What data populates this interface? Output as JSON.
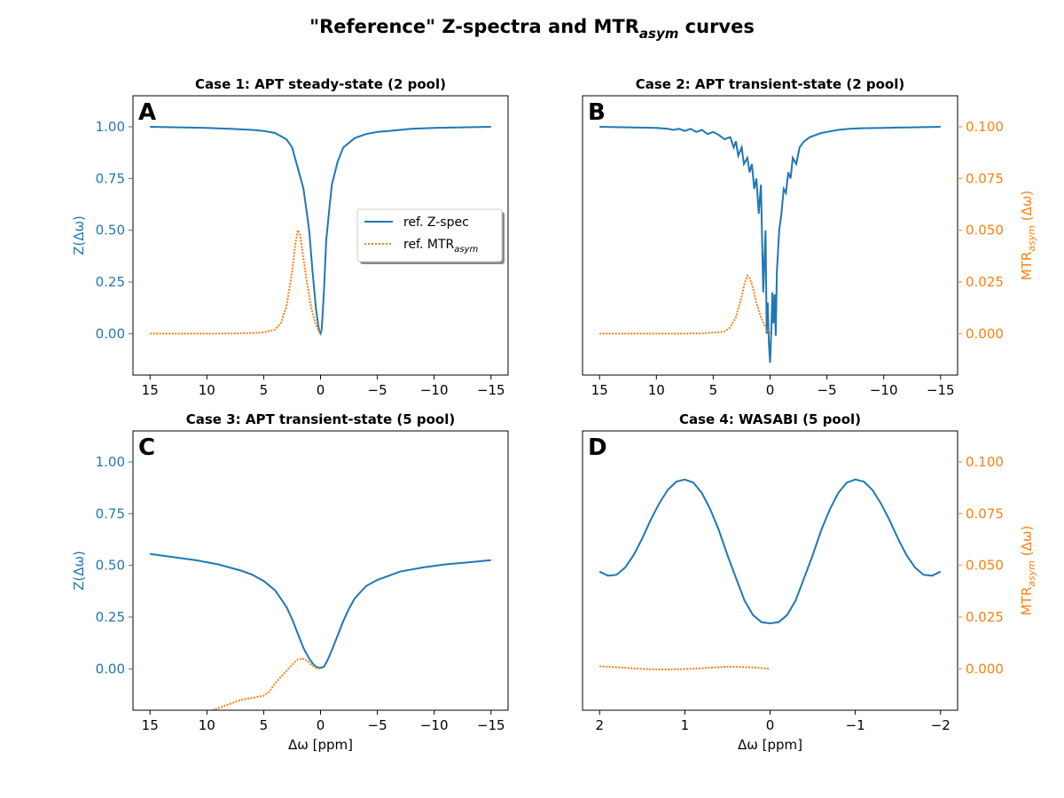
{
  "figure": {
    "title_prefix": "\"Reference\" Z-spectra and MTR",
    "title_sub": "asym",
    "title_suffix": " curves"
  },
  "legend": {
    "zspec_label": "ref. Z-spec",
    "mtr_label_prefix": "ref. MTR",
    "mtr_label_sub": "asym"
  },
  "axes_labels": {
    "z_ylabel": "Z(Δω)",
    "mtr_ylabel_prefix": "MTR",
    "mtr_ylabel_sub": "asym",
    "mtr_ylabel_suffix": " (Δω)",
    "xlabel": "Δω [ppm]"
  },
  "colors": {
    "zspec": "#1f77b4",
    "mtr": "#ff7f0e",
    "axis": "#000000"
  },
  "chart_data": [
    {
      "panel": "A",
      "type": "line",
      "title": "Case 1: APT steady-state (2 pool)",
      "xlim": [
        16.5,
        -16.5
      ],
      "x_ticks": [
        15,
        10,
        5,
        0,
        -5,
        -10,
        -15
      ],
      "x_tick_labels": [
        "15",
        "10",
        "5",
        "0",
        "−5",
        "−10",
        "−15"
      ],
      "ylim_left": [
        -0.2,
        1.15
      ],
      "y_ticks_left": [
        0.0,
        0.25,
        0.5,
        0.75,
        1.0
      ],
      "y_tick_labels_left": [
        "0.00",
        "0.25",
        "0.50",
        "0.75",
        "1.00"
      ],
      "show_left_axis": true,
      "show_right_axis": false,
      "xlabel_shown": false,
      "legend": "center-right",
      "series": [
        {
          "name": "ref. Z-spec",
          "style": "solid",
          "axis": "left",
          "x": [
            15,
            12,
            10,
            8,
            6,
            5,
            4,
            3,
            2.5,
            2,
            1.5,
            1,
            0.7,
            0.4,
            0.2,
            0.1,
            0,
            -0.1,
            -0.3,
            -0.5,
            -0.8,
            -1,
            -1.5,
            -2,
            -3,
            -4,
            -5,
            -6,
            -8,
            -10,
            -12,
            -15
          ],
          "y": [
            1.0,
            0.997,
            0.995,
            0.99,
            0.985,
            0.98,
            0.97,
            0.94,
            0.9,
            0.8,
            0.7,
            0.5,
            0.3,
            0.12,
            0.04,
            0.01,
            0.0,
            0.02,
            0.2,
            0.45,
            0.62,
            0.72,
            0.83,
            0.9,
            0.945,
            0.965,
            0.975,
            0.98,
            0.99,
            0.995,
            0.997,
            1.0
          ]
        },
        {
          "name": "ref. MTRasym",
          "style": "dotted",
          "axis": "left",
          "x": [
            15,
            12,
            10,
            8,
            6,
            5,
            4,
            3.5,
            3,
            2.5,
            2.2,
            2,
            1.8,
            1.6,
            1.2,
            0.8,
            0.4,
            0
          ],
          "y": [
            0.0,
            0.0,
            0.0,
            0.001,
            0.003,
            0.006,
            0.02,
            0.05,
            0.13,
            0.3,
            0.44,
            0.5,
            0.48,
            0.4,
            0.25,
            0.12,
            0.04,
            0.0
          ]
        }
      ]
    },
    {
      "panel": "B",
      "type": "line",
      "title": "Case 2: APT transient-state (2 pool)",
      "xlim": [
        16.5,
        -16.5
      ],
      "x_ticks": [
        15,
        10,
        5,
        0,
        -5,
        -10,
        -15
      ],
      "x_tick_labels": [
        "15",
        "10",
        "5",
        "0",
        "−5",
        "−10",
        "−15"
      ],
      "ylim_left": [
        -0.2,
        1.15
      ],
      "ylim_right": [
        -0.02,
        0.115
      ],
      "y_ticks_right": [
        0.0,
        0.025,
        0.05,
        0.075,
        0.1
      ],
      "y_tick_labels_right": [
        "0.000",
        "0.025",
        "0.050",
        "0.075",
        "0.100"
      ],
      "show_left_axis": false,
      "show_right_axis": true,
      "xlabel_shown": false,
      "series": [
        {
          "name": "ref. Z-spec",
          "style": "solid",
          "axis": "left",
          "x": [
            15,
            12,
            10,
            9,
            8.5,
            8,
            7.5,
            7,
            6.5,
            6,
            5.5,
            5,
            4.5,
            4,
            3.5,
            3.2,
            3,
            2.8,
            2.5,
            2.3,
            2,
            1.8,
            1.6,
            1.4,
            1.2,
            1.0,
            0.8,
            0.6,
            0.4,
            0.3,
            0.2,
            0.1,
            0,
            -0.1,
            -0.2,
            -0.3,
            -0.4,
            -0.5,
            -0.6,
            -0.8,
            -1.0,
            -1.2,
            -1.4,
            -1.6,
            -1.8,
            -2.0,
            -2.3,
            -2.6,
            -3,
            -3.5,
            -4,
            -4.5,
            -5,
            -6,
            -7,
            -8,
            -10,
            -12,
            -15
          ],
          "y": [
            1.0,
            0.997,
            0.995,
            0.99,
            0.985,
            0.99,
            0.98,
            0.99,
            0.975,
            0.985,
            0.965,
            0.975,
            0.96,
            0.94,
            0.95,
            0.9,
            0.93,
            0.86,
            0.9,
            0.82,
            0.85,
            0.78,
            0.82,
            0.7,
            0.75,
            0.58,
            0.72,
            0.2,
            0.5,
            0.0,
            0.15,
            -0.05,
            -0.14,
            0.0,
            0.2,
            0.05,
            0.19,
            -0.01,
            0.3,
            0.5,
            0.58,
            0.7,
            0.68,
            0.78,
            0.75,
            0.85,
            0.82,
            0.9,
            0.93,
            0.95,
            0.96,
            0.97,
            0.975,
            0.985,
            0.99,
            0.993,
            0.995,
            0.997,
            1.0
          ]
        },
        {
          "name": "ref. MTRasym",
          "style": "dotted",
          "axis": "right",
          "x": [
            15,
            12,
            10,
            8,
            6,
            5,
            4,
            3.5,
            3,
            2.5,
            2.2,
            2,
            1.8,
            1.5,
            1.2,
            0.8,
            0.4,
            0
          ],
          "y": [
            0.0,
            0.0,
            0.0,
            0.0,
            0.0002,
            0.0005,
            0.001,
            0.003,
            0.008,
            0.018,
            0.025,
            0.028,
            0.027,
            0.022,
            0.015,
            0.008,
            0.003,
            0.0
          ]
        }
      ]
    },
    {
      "panel": "C",
      "type": "line",
      "title": "Case 3: APT transient-state (5 pool)",
      "xlim": [
        16.5,
        -16.5
      ],
      "x_ticks": [
        15,
        10,
        5,
        0,
        -5,
        -10,
        -15
      ],
      "x_tick_labels": [
        "15",
        "10",
        "5",
        "0",
        "−5",
        "−10",
        "−15"
      ],
      "ylim_left": [
        -0.2,
        1.15
      ],
      "y_ticks_left": [
        0.0,
        0.25,
        0.5,
        0.75,
        1.0
      ],
      "y_tick_labels_left": [
        "0.00",
        "0.25",
        "0.50",
        "0.75",
        "1.00"
      ],
      "show_left_axis": true,
      "show_right_axis": false,
      "xlabel_shown": true,
      "series": [
        {
          "name": "ref. Z-spec",
          "style": "solid",
          "axis": "left",
          "x": [
            15,
            13,
            11,
            9,
            7,
            6,
            5,
            4,
            3,
            2.5,
            2,
            1.5,
            1,
            0.6,
            0.3,
            0,
            -0.3,
            -0.6,
            -1,
            -1.5,
            -2,
            -2.5,
            -3,
            -4,
            -5,
            -7,
            -9,
            -11,
            -13,
            -15
          ],
          "y": [
            0.555,
            0.54,
            0.525,
            0.505,
            0.475,
            0.455,
            0.425,
            0.38,
            0.3,
            0.24,
            0.17,
            0.1,
            0.05,
            0.02,
            0.008,
            0.005,
            0.01,
            0.04,
            0.09,
            0.16,
            0.23,
            0.29,
            0.34,
            0.4,
            0.43,
            0.47,
            0.49,
            0.505,
            0.515,
            0.525
          ]
        },
        {
          "name": "ref. MTRasym",
          "style": "dotted",
          "axis": "left",
          "x": [
            9.8,
            9,
            8,
            7,
            6,
            5,
            4.5,
            4,
            3.5,
            3,
            2.5,
            2,
            1.6,
            1.2,
            0.8,
            0.4,
            0
          ],
          "y": [
            -0.205,
            -0.19,
            -0.17,
            -0.15,
            -0.14,
            -0.13,
            -0.11,
            -0.07,
            -0.04,
            -0.01,
            0.02,
            0.045,
            0.05,
            0.04,
            0.02,
            0.005,
            0.0
          ]
        }
      ]
    },
    {
      "panel": "D",
      "type": "line",
      "title": "Case 4: WASABI (5 pool)",
      "xlim": [
        2.2,
        -2.2
      ],
      "x_ticks": [
        2,
        1,
        0,
        -1,
        -2
      ],
      "x_tick_labels": [
        "2",
        "1",
        "0",
        "−1",
        "−2"
      ],
      "ylim_left": [
        -0.2,
        1.15
      ],
      "ylim_right": [
        -0.02,
        0.115
      ],
      "y_ticks_right": [
        0.0,
        0.025,
        0.05,
        0.075,
        0.1
      ],
      "y_tick_labels_right": [
        "0.000",
        "0.025",
        "0.050",
        "0.075",
        "0.100"
      ],
      "show_left_axis": false,
      "show_right_axis": true,
      "xlabel_shown": true,
      "series": [
        {
          "name": "ref. Z-spec",
          "style": "solid",
          "axis": "left",
          "x": [
            2.0,
            1.9,
            1.8,
            1.7,
            1.6,
            1.5,
            1.4,
            1.3,
            1.2,
            1.1,
            1.0,
            0.9,
            0.8,
            0.7,
            0.6,
            0.5,
            0.4,
            0.3,
            0.2,
            0.1,
            0.0,
            -0.1,
            -0.2,
            -0.3,
            -0.4,
            -0.5,
            -0.6,
            -0.7,
            -0.8,
            -0.9,
            -1.0,
            -1.1,
            -1.2,
            -1.3,
            -1.4,
            -1.5,
            -1.6,
            -1.7,
            -1.8,
            -1.9,
            -2.0
          ],
          "y": [
            0.47,
            0.45,
            0.455,
            0.49,
            0.55,
            0.63,
            0.72,
            0.8,
            0.865,
            0.905,
            0.915,
            0.9,
            0.85,
            0.77,
            0.67,
            0.55,
            0.44,
            0.33,
            0.26,
            0.225,
            0.22,
            0.225,
            0.26,
            0.33,
            0.44,
            0.55,
            0.67,
            0.77,
            0.85,
            0.9,
            0.915,
            0.905,
            0.865,
            0.8,
            0.72,
            0.63,
            0.55,
            0.49,
            0.455,
            0.45,
            0.47
          ]
        },
        {
          "name": "ref. MTRasym",
          "style": "dotted",
          "axis": "right",
          "x": [
            2.0,
            1.8,
            1.6,
            1.4,
            1.3,
            1.2,
            1.0,
            0.8,
            0.6,
            0.5,
            0.4,
            0.2,
            0.0
          ],
          "y": [
            0.0012,
            0.0008,
            0.0002,
            -0.0002,
            -0.0003,
            -0.0003,
            -0.0001,
            0.0003,
            0.0008,
            0.001,
            0.001,
            0.0007,
            0.0
          ]
        }
      ]
    }
  ]
}
